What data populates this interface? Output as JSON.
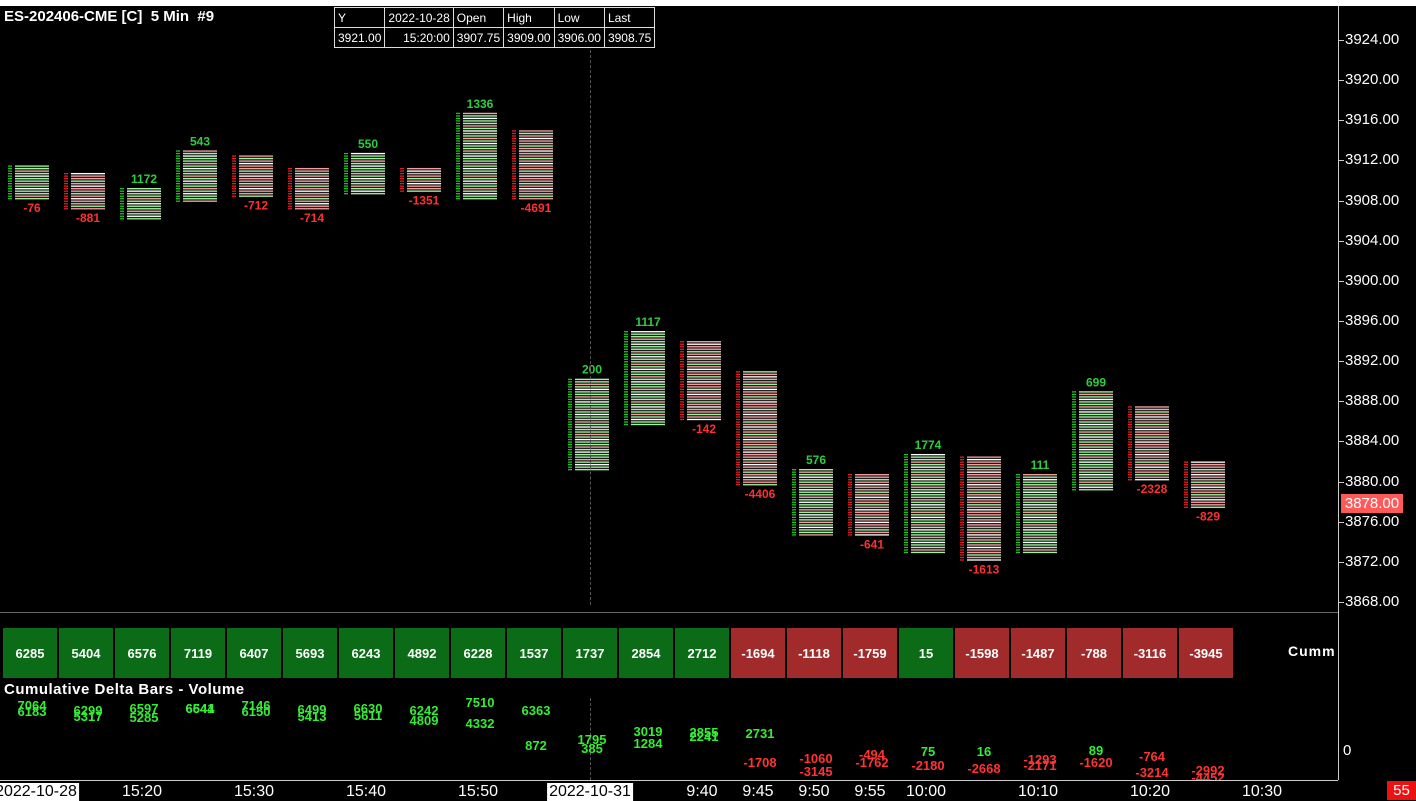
{
  "chart": {
    "title": "ES-202406-CME [C]  5 Min  #9",
    "last_price": "3878.00",
    "corner_badge": "55",
    "colors": {
      "up": "#1fc21f",
      "down": "#e02020",
      "up_light": "#9ff59f",
      "down_light": "#f5a0a0",
      "cumm_pos": "#0b6b17",
      "cumm_neg": "#a12b2b"
    }
  },
  "ohlc_panel": {
    "headers": [
      "Y",
      "2022-10-28",
      "Open",
      "High",
      "Low",
      "Last"
    ],
    "values": [
      "3921.00",
      "15:20:00",
      "3907.75",
      "3909.00",
      "3906.00",
      "3908.75"
    ]
  },
  "price_axis": {
    "labels": [
      "3924.00",
      "3920.00",
      "3916.00",
      "3912.00",
      "3908.00",
      "3904.00",
      "3900.00",
      "3896.00",
      "3892.00",
      "3888.00",
      "3884.00",
      "3880.00",
      "3876.00",
      "3872.00",
      "3868.00"
    ]
  },
  "chart_data": {
    "type": "bar",
    "bars": [
      {
        "top": 3911.5,
        "bottom": 3908.25,
        "up": true,
        "delta": -76,
        "cumm": 6285,
        "vol_top": "7064",
        "vol_bottom": "6183"
      },
      {
        "top": 3910.75,
        "bottom": 3907.25,
        "up": false,
        "delta": -881,
        "cumm": 5404,
        "vol_top": "6299",
        "vol_bottom": "5317"
      },
      {
        "top": 3909.25,
        "bottom": 3906.25,
        "up": true,
        "delta": 1172,
        "cumm": 6576,
        "vol_top": "6597",
        "vol_bottom": "5285"
      },
      {
        "top": 3913.0,
        "bottom": 3908.0,
        "up": true,
        "delta": 543,
        "cumm": 7119,
        "vol_top": "6641",
        "vol_bottom": "6544"
      },
      {
        "top": 3912.5,
        "bottom": 3908.5,
        "up": false,
        "delta": -712,
        "cumm": 6407,
        "vol_top": "7146",
        "vol_bottom": "6150"
      },
      {
        "top": 3911.25,
        "bottom": 3907.25,
        "up": false,
        "delta": -714,
        "cumm": 5693,
        "vol_top": "6499",
        "vol_bottom": "5413"
      },
      {
        "top": 3912.75,
        "bottom": 3908.75,
        "up": true,
        "delta": 550,
        "cumm": 6243,
        "vol_top": "6630",
        "vol_bottom": "5611"
      },
      {
        "top": 3911.25,
        "bottom": 3909.0,
        "up": false,
        "delta": -1351,
        "cumm": 4892,
        "vol_top": "6242",
        "vol_bottom": "4809"
      },
      {
        "top": 3916.75,
        "bottom": 3908.25,
        "up": true,
        "delta": 1336,
        "cumm": 6228,
        "vol_top": "7510",
        "vol_bottom": "4332"
      },
      {
        "top": 3915.0,
        "bottom": 3908.25,
        "up": false,
        "delta": -4691,
        "cumm": 1537,
        "vol_top": "6363",
        "vol_bottom": "872"
      },
      {
        "top": 3890.25,
        "bottom": 3881.25,
        "up": true,
        "delta": 200,
        "cumm": 1737,
        "vol_top": "1795",
        "vol_bottom": "385"
      },
      {
        "top": 3895.0,
        "bottom": 3885.75,
        "up": true,
        "delta": 1117,
        "cumm": 2854,
        "vol_top": "3019",
        "vol_bottom": "1284"
      },
      {
        "top": 3894.0,
        "bottom": 3886.25,
        "up": false,
        "delta": -142,
        "cumm": 2712,
        "vol_top": "2855",
        "vol_bottom": "2241"
      },
      {
        "top": 3891.0,
        "bottom": 3879.75,
        "up": false,
        "delta": -4406,
        "cumm": -1694,
        "vol_top": "2731",
        "vol_bottom": "-1708"
      },
      {
        "top": 3881.25,
        "bottom": 3874.75,
        "up": true,
        "delta": 576,
        "cumm": -1118,
        "vol_top": "-1060",
        "vol_bottom": "-3145"
      },
      {
        "top": 3880.75,
        "bottom": 3874.75,
        "up": false,
        "delta": -641,
        "cumm": -1759,
        "vol_top": "-494",
        "vol_bottom": "-1762"
      },
      {
        "top": 3882.75,
        "bottom": 3873.0,
        "up": true,
        "delta": 1774,
        "cumm": 15,
        "vol_top": "75",
        "vol_bottom": "-2180"
      },
      {
        "top": 3882.5,
        "bottom": 3872.25,
        "up": false,
        "delta": -1613,
        "cumm": -1598,
        "vol_top": "16",
        "vol_bottom": "-2668"
      },
      {
        "top": 3880.75,
        "bottom": 3873.0,
        "up": true,
        "delta": 111,
        "cumm": -1487,
        "vol_top": "-1293",
        "vol_bottom": "-2171"
      },
      {
        "top": 3889.0,
        "bottom": 3879.25,
        "up": true,
        "delta": 699,
        "cumm": -788,
        "vol_top": "89",
        "vol_bottom": "-1620"
      },
      {
        "top": 3887.5,
        "bottom": 3880.25,
        "up": false,
        "delta": -2328,
        "cumm": -3116,
        "vol_top": "-764",
        "vol_bottom": "-3214"
      },
      {
        "top": 3882.0,
        "bottom": 3877.5,
        "up": false,
        "delta": -829,
        "cumm": -3945,
        "vol_top": "-2992",
        "vol_bottom": "-4452"
      }
    ],
    "ylim": [
      3867.5,
      3926.0
    ]
  },
  "cumm_panel": {
    "label": "Cumm"
  },
  "study": {
    "title": "Cumulative Delta Bars - Volume",
    "zero_label": "0"
  },
  "time_axis": {
    "labels": [
      {
        "text": "2022-10-28",
        "boxed": true
      },
      {
        "text": "15:20",
        "boxed": false
      },
      {
        "text": "15:30",
        "boxed": false
      },
      {
        "text": "15:40",
        "boxed": false
      },
      {
        "text": "15:50",
        "boxed": false
      },
      {
        "text": "2022-10-31",
        "boxed": true
      },
      {
        "text": "9:40",
        "boxed": false
      },
      {
        "text": "9:45",
        "boxed": false
      },
      {
        "text": "9:50",
        "boxed": false
      },
      {
        "text": "9:55",
        "boxed": false
      },
      {
        "text": "10:00",
        "boxed": false
      },
      {
        "text": "10:10",
        "boxed": false
      },
      {
        "text": "10:20",
        "boxed": false
      },
      {
        "text": "10:30",
        "boxed": false
      }
    ]
  }
}
